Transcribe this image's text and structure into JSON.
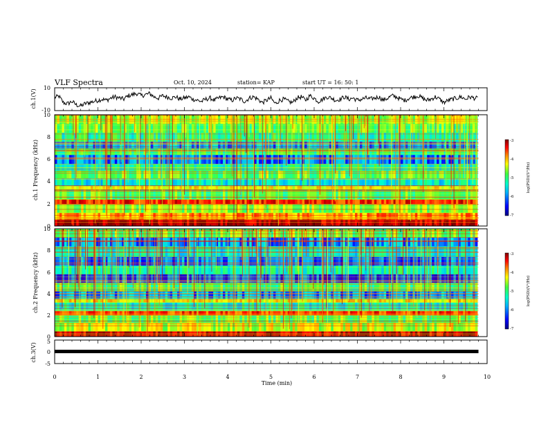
{
  "header": {
    "title": "VLF Spectra",
    "date": "Oct. 10, 2024",
    "station": "station= KAP",
    "start": "start  UT =   16: 50: 1"
  },
  "chart_data": [
    {
      "type": "line",
      "name": "ch1-waveform",
      "ylabel": "ch.1(V)",
      "ylim": [
        -10,
        10
      ],
      "yticks": [
        "10",
        "-10"
      ],
      "xlim": [
        0,
        10
      ],
      "data_span_min": [
        0,
        9.8
      ],
      "x": [
        0,
        0.1,
        0.2,
        0.3,
        0.4,
        0.5,
        0.6,
        0.7,
        0.8,
        0.9,
        1.0,
        1.1,
        1.2,
        1.3,
        1.4,
        1.5,
        1.6,
        1.7,
        1.8,
        1.9,
        2.0,
        2.1,
        2.2,
        2.3,
        2.4,
        2.5,
        2.6,
        2.7,
        2.8,
        2.9,
        3.0,
        3.1,
        3.2,
        3.3,
        3.4,
        3.5,
        3.6,
        3.7,
        3.8,
        3.9,
        4.0,
        4.1,
        4.2,
        4.3,
        4.4,
        4.5,
        4.6,
        4.7,
        4.8,
        4.9,
        5.0,
        5.1,
        5.2,
        5.3,
        5.4,
        5.5,
        5.6,
        5.7,
        5.8,
        5.9,
        6.0,
        6.1,
        6.2,
        6.3,
        6.4,
        6.5,
        6.6,
        6.7,
        6.8,
        6.9,
        7.0,
        7.1,
        7.2,
        7.3,
        7.4,
        7.5,
        7.6,
        7.7,
        7.8,
        7.9,
        8.0,
        8.1,
        8.2,
        8.3,
        8.4,
        8.5,
        8.6,
        8.7,
        8.8,
        8.9,
        9.0,
        9.1,
        9.2,
        9.3,
        9.4,
        9.5,
        9.6,
        9.7,
        9.8
      ],
      "y": [
        1.5,
        2.5,
        -3,
        -4,
        -2,
        -5,
        -6,
        -4,
        -3,
        -2,
        -1,
        0,
        -1,
        1,
        2,
        1,
        0,
        3,
        4,
        5,
        3,
        4,
        5,
        2,
        1,
        3,
        2,
        1,
        2,
        0,
        1,
        2,
        0,
        -1,
        -2,
        0,
        1,
        -1,
        1,
        2,
        0,
        -1,
        1,
        0,
        -2,
        1,
        2,
        0,
        -3,
        -1,
        1,
        -4,
        -1,
        0,
        -2,
        -3,
        1,
        2,
        -1,
        3,
        1,
        -2,
        0,
        2,
        1,
        -1,
        0,
        2,
        0,
        1,
        -1,
        0,
        1,
        0,
        1,
        2,
        -1,
        1,
        3,
        2,
        0,
        -1,
        1,
        2,
        3,
        1,
        -1,
        0,
        2,
        0,
        -3,
        -1,
        0,
        1,
        2,
        0,
        2,
        1,
        0.5
      ]
    },
    {
      "type": "heatmap",
      "name": "ch1-spectrogram",
      "ylabel": "ch.1 Frequency (kHz)",
      "xlim": [
        0,
        10
      ],
      "ylim": [
        0,
        10
      ],
      "yticks": [
        "0",
        "2",
        "4",
        "6",
        "8",
        "10"
      ],
      "zlabel": "log(PSD)(V²/Hz)",
      "zlim": [
        -7,
        -3
      ],
      "zticks": [
        "-3",
        "-4",
        "-5",
        "-6",
        "-7"
      ],
      "band_rows_khz": [
        {
          "from": 0.0,
          "to": 0.6,
          "level": -3.2
        },
        {
          "from": 0.6,
          "to": 1.2,
          "level": -4.1
        },
        {
          "from": 1.2,
          "to": 2.0,
          "level": -4.8
        },
        {
          "from": 2.0,
          "to": 2.4,
          "level": -3.6
        },
        {
          "from": 2.4,
          "to": 3.3,
          "level": -5.1
        },
        {
          "from": 3.3,
          "to": 3.6,
          "level": -4.4
        },
        {
          "from": 3.6,
          "to": 4.3,
          "level": -5.6
        },
        {
          "from": 4.3,
          "to": 5.0,
          "level": -5.0
        },
        {
          "from": 5.0,
          "to": 5.6,
          "level": -5.4
        },
        {
          "from": 5.6,
          "to": 6.4,
          "level": -6.1
        },
        {
          "from": 6.4,
          "to": 7.0,
          "level": -5.2
        },
        {
          "from": 7.0,
          "to": 7.6,
          "level": -6.0
        },
        {
          "from": 7.6,
          "to": 8.4,
          "level": -5.3
        },
        {
          "from": 8.4,
          "to": 9.2,
          "level": -5.0
        },
        {
          "from": 9.2,
          "to": 10.0,
          "level": -4.7
        }
      ]
    },
    {
      "type": "heatmap",
      "name": "ch2-spectrogram",
      "ylabel": "ch.2 Frequency (kHz)",
      "xlim": [
        0,
        10
      ],
      "ylim": [
        0,
        10
      ],
      "yticks": [
        "0",
        "2",
        "4",
        "6",
        "8",
        "10"
      ],
      "zlabel": "log(PSD)(V²/Hz)",
      "zlim": [
        -7,
        -3
      ],
      "zticks": [
        "-3",
        "-4",
        "-5",
        "-6",
        "-7"
      ],
      "band_rows_khz": [
        {
          "from": 0.0,
          "to": 0.5,
          "level": -3.3
        },
        {
          "from": 0.5,
          "to": 1.3,
          "level": -4.6
        },
        {
          "from": 1.3,
          "to": 2.0,
          "level": -5.0
        },
        {
          "from": 2.0,
          "to": 2.4,
          "level": -3.7
        },
        {
          "from": 2.4,
          "to": 3.2,
          "level": -5.5
        },
        {
          "from": 3.2,
          "to": 3.5,
          "level": -4.4
        },
        {
          "from": 3.5,
          "to": 4.2,
          "level": -6.0
        },
        {
          "from": 4.2,
          "to": 5.0,
          "level": -5.1
        },
        {
          "from": 5.0,
          "to": 5.8,
          "level": -6.2
        },
        {
          "from": 5.8,
          "to": 6.6,
          "level": -5.4
        },
        {
          "from": 6.6,
          "to": 7.4,
          "level": -6.1
        },
        {
          "from": 7.4,
          "to": 8.4,
          "level": -5.6
        },
        {
          "from": 8.4,
          "to": 9.2,
          "level": -6.0
        },
        {
          "from": 9.2,
          "to": 10.0,
          "level": -5.0
        }
      ]
    },
    {
      "type": "line",
      "name": "ch3-waveform",
      "ylabel": "ch.3(V)",
      "ylim": [
        -5,
        5
      ],
      "yticks": [
        "5",
        "0",
        "-5"
      ],
      "xlim": [
        0,
        10
      ],
      "x": [
        0,
        9.8
      ],
      "y": [
        0,
        0
      ]
    }
  ],
  "x_axis": {
    "label": "Time (min)",
    "ticks": [
      "0",
      "1",
      "2",
      "3",
      "4",
      "5",
      "6",
      "7",
      "8",
      "9",
      "10"
    ]
  },
  "colors": {
    "scale": [
      "#000080",
      "#0000ff",
      "#00b0ff",
      "#00ffcc",
      "#40ff40",
      "#ffff00",
      "#ff8000",
      "#ff0000",
      "#800000"
    ]
  }
}
